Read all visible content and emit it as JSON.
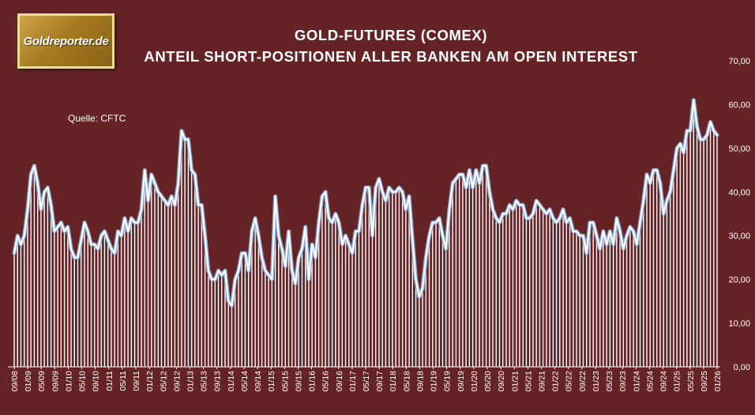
{
  "logo": {
    "text": "Goldreporter.de"
  },
  "source": "Quelle: CFTC",
  "colors": {
    "background": "#652326",
    "bars": "#ffffff",
    "line": "#ffffff",
    "line_glow": "#8fb4e0"
  },
  "chart_data": {
    "type": "area",
    "title": "GOLD-FUTURES (COMEX)",
    "subtitle": "ANTEIL SHORT-POSITIONEN ALLER BANKEN AM OPEN INTEREST",
    "xlabel": "",
    "ylabel": "",
    "ylim": [
      0,
      70
    ],
    "yticks": [
      "0,00",
      "10,00",
      "20,00",
      "30,00",
      "40,00",
      "50,00",
      "60,00",
      "70,00"
    ],
    "y_axis_position": "right",
    "grid": false,
    "x_tick_labels": [
      "09/08",
      "01/09",
      "05/09",
      "09/09",
      "01/10",
      "05/10",
      "09/10",
      "01/11",
      "05/11",
      "09/11",
      "01/12",
      "05/12",
      "09/12",
      "01/13",
      "05/13",
      "09/13",
      "01/14",
      "05/14",
      "09/14",
      "01/15",
      "05/15",
      "09/15",
      "01/16",
      "05/16",
      "09/16",
      "01/17",
      "05/17",
      "09/17",
      "01/18",
      "05/18",
      "09/18",
      "01/19",
      "05/19",
      "09/19",
      "01/20",
      "05/20",
      "09/20",
      "01/21",
      "05/21",
      "09/21",
      "01/22",
      "05/22",
      "09/22",
      "01/23",
      "05/23",
      "09/23",
      "01/24",
      "05/24",
      "09/24",
      "01/25",
      "05/25",
      "09/25",
      "01/26"
    ],
    "series": [
      {
        "values": [
          26,
          30,
          28,
          30,
          36,
          44,
          46,
          42,
          36,
          40,
          41,
          37,
          31,
          32,
          33,
          31,
          32,
          27,
          25,
          25,
          29,
          33,
          31,
          28,
          28,
          27,
          30,
          31,
          29,
          27,
          26,
          31,
          30,
          34,
          31,
          34,
          33,
          33,
          36,
          45,
          38,
          44,
          42,
          40,
          39,
          38,
          37,
          39,
          37,
          42,
          54,
          52,
          52,
          45,
          44,
          37,
          37,
          30,
          22,
          20,
          20,
          22,
          21,
          22,
          15,
          14,
          20,
          22,
          26,
          26,
          22,
          31,
          34,
          30,
          25,
          22,
          21,
          20,
          39,
          30,
          27,
          23,
          31,
          22,
          19,
          25,
          27,
          32,
          20,
          28,
          25,
          33,
          39,
          40,
          34,
          33,
          35,
          33,
          28,
          30,
          28,
          26,
          31,
          31,
          37,
          41,
          41,
          30,
          41,
          43,
          40,
          38,
          41,
          40,
          40,
          41,
          40,
          36,
          39,
          29,
          20,
          16,
          18,
          25,
          30,
          33,
          33,
          34,
          30,
          27,
          36,
          42,
          43,
          44,
          44,
          41,
          45,
          41,
          45,
          42,
          46,
          46,
          40,
          36,
          34,
          33,
          35,
          35,
          37,
          36,
          38,
          37,
          37,
          34,
          34,
          35,
          38,
          37,
          36,
          35,
          36,
          34,
          33,
          34,
          36,
          33,
          34,
          31,
          31,
          30,
          30,
          26,
          33,
          33,
          30,
          27,
          31,
          28,
          31,
          28,
          34,
          31,
          27,
          30,
          32,
          31,
          28,
          33,
          38,
          44,
          42,
          45,
          45,
          42,
          35,
          38,
          40,
          45,
          50,
          51,
          49,
          54,
          54,
          61,
          55,
          52,
          52,
          53,
          56,
          54,
          53
        ]
      }
    ]
  }
}
